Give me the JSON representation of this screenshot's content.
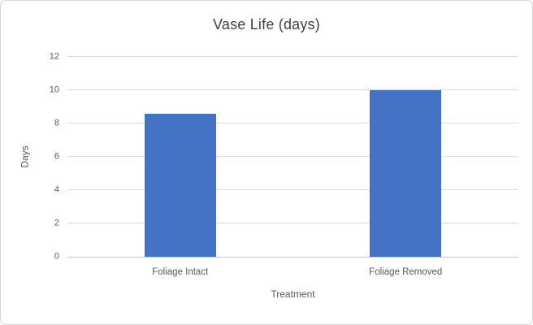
{
  "chart_data": {
    "type": "bar",
    "title": "Vase Life (days)",
    "xlabel": "Treatment",
    "ylabel": "Days",
    "categories": [
      "Foliage Intact",
      "Foliage Removed"
    ],
    "values": [
      8.6,
      10
    ],
    "ylim": [
      0,
      12
    ],
    "yticks": [
      0,
      2,
      4,
      6,
      8,
      10,
      12
    ],
    "grid": "horizontal",
    "legend": "none",
    "colors": {
      "bar": "#4472C4",
      "gridline": "#DBDBDB",
      "axis_line": "#C9C9C9",
      "tick_label": "#595959",
      "axis_title": "#595959",
      "title": "#404040",
      "frame_border": "#D6D6D6",
      "background": "#FFFFFF"
    }
  }
}
